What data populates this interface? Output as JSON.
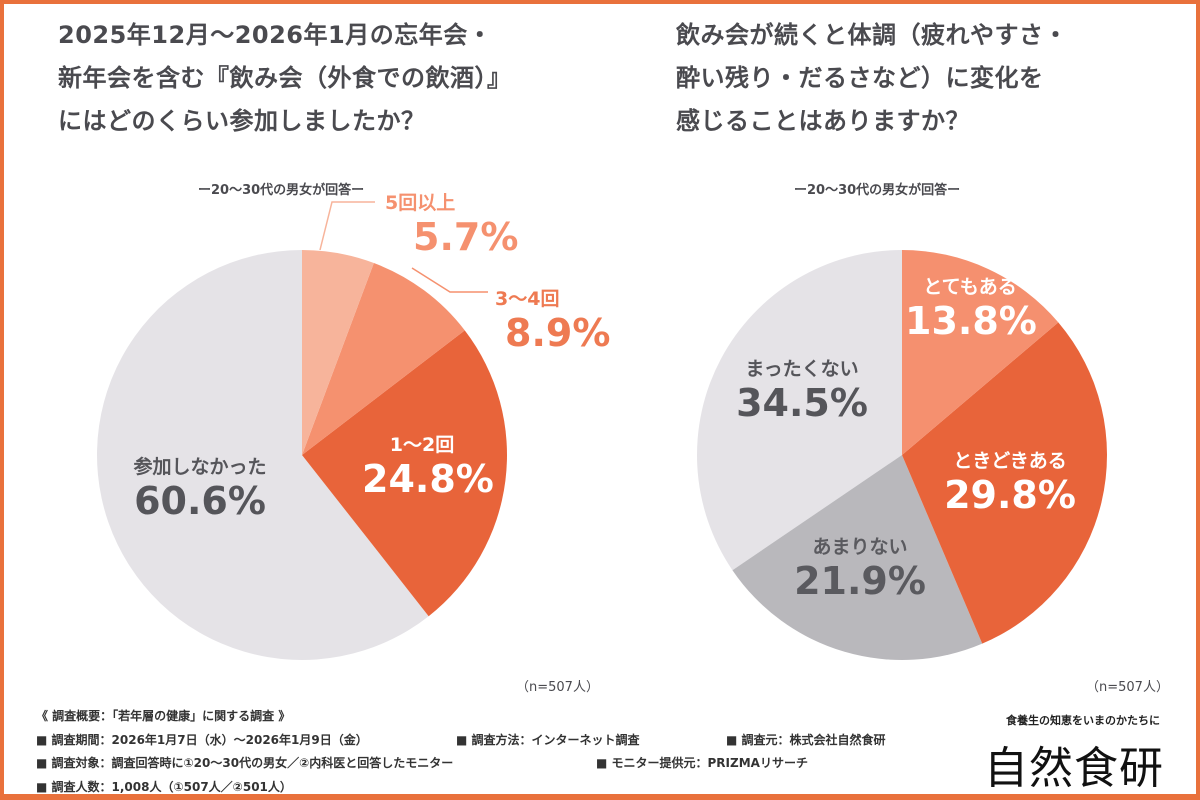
{
  "chart_data": [
    {
      "type": "pie",
      "title": "2025年12月～2026年1月の忘年会・新年会を含む『飲み会（外食での飲酒）』にはどのくらい参加しましたか？",
      "title_lines": [
        "2025年12月～2026年1月の忘年会・",
        "新年会を含む『飲み会（外食での飲酒）』",
        "にはどのくらい参加しましたか？"
      ],
      "subtitle": "ー20～30代の男女が回答ー",
      "n": "（n=507人）",
      "slices": [
        {
          "label": "5回以上",
          "value": 5.7,
          "text": "5.7%",
          "color": "#f7b49b"
        },
        {
          "label": "3～4回",
          "value": 8.9,
          "text": "8.9%",
          "color": "#f5916f"
        },
        {
          "label": "1～2回",
          "value": 24.8,
          "text": "24.8%",
          "color": "#e8643a"
        },
        {
          "label": "参加しなかった",
          "value": 60.6,
          "text": "60.6%",
          "color": "#e5e3e7"
        }
      ]
    },
    {
      "type": "pie",
      "title": "飲み会が続くと体調（疲れやすさ・酔い残り・だるさなど）に変化を感じることはありますか？",
      "title_lines": [
        "飲み会が続くと体調（疲れやすさ・",
        "酔い残り・だるさなど）に変化を",
        "感じることはありますか？"
      ],
      "subtitle": "ー20～30代の男女が回答ー",
      "n": "（n=507人）",
      "slices": [
        {
          "label": "とてもある",
          "value": 13.8,
          "text": "13.8%",
          "color": "#f5906f"
        },
        {
          "label": "ときどきある",
          "value": 29.8,
          "text": "29.8%",
          "color": "#e8643a"
        },
        {
          "label": "あまりない",
          "value": 21.9,
          "text": "21.9%",
          "color": "#b9b8bc"
        },
        {
          "label": "まったくない",
          "value": 34.5,
          "text": "34.5%",
          "color": "#e5e3e7"
        }
      ]
    }
  ],
  "footer": {
    "heading": "《 調査概要：「若年層の健康」に関する調査 》",
    "period": "■ 調査期間：2026年1月7日（水）～2026年1月9日（金）",
    "method": "■ 調査方法：インターネット調査",
    "source": "■ 調査元：株式会社自然食研",
    "target": "■ 調査対象：調査回答時に①20～30代の男女／②内科医と回答したモニター",
    "monitor": "■ モニター提供元：PRIZMAリサーチ",
    "count": "■ 調査人数：1,008人（①507人／②501人）"
  },
  "logo": {
    "tagline": "食養生の知恵をいまのかたちに",
    "name": "自然食研"
  }
}
